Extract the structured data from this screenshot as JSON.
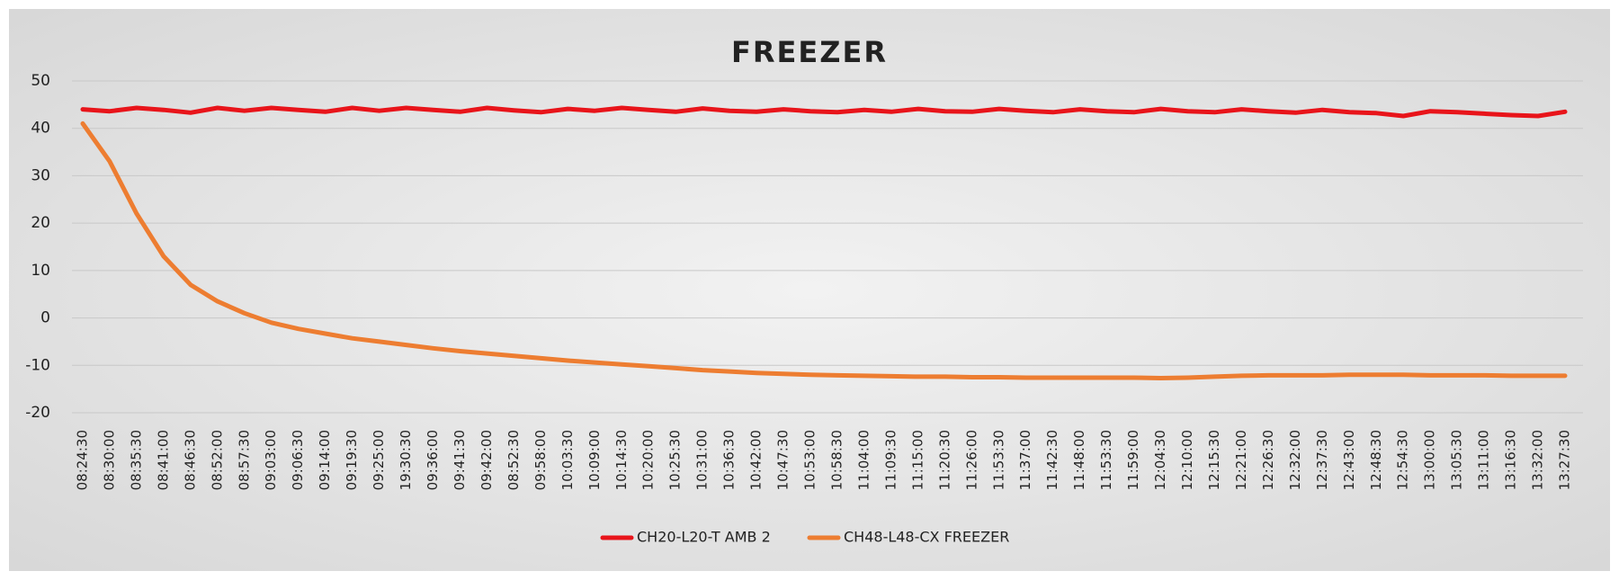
{
  "chart_data": {
    "type": "line",
    "title": "FREEZER",
    "categories": [
      "08:24:30",
      "08:30:00",
      "08:35:30",
      "08:41:00",
      "08:46:30",
      "08:52:00",
      "08:57:30",
      "09:03:00",
      "09:06:30",
      "09:14:00",
      "09:19:30",
      "09:25:00",
      "19:30:30",
      "09:36:00",
      "09:41:30",
      "09:42:00",
      "08:52:30",
      "09:58:00",
      "10:03:30",
      "10:09:00",
      "10:14:30",
      "10:20:00",
      "10:25:30",
      "10:31:00",
      "10:36:30",
      "10:42:00",
      "10:47:30",
      "10:53:00",
      "10:58:30",
      "11:04:00",
      "11:09:30",
      "11:15:00",
      "11:20:30",
      "11:26:00",
      "11:53:30",
      "11:37:00",
      "11:42:30",
      "11:48:00",
      "11:53:30",
      "11:59:00",
      "12:04:30",
      "12:10:00",
      "12:15:30",
      "12:21:00",
      "12:26:30",
      "12:32:00",
      "12:37:30",
      "12:43:00",
      "12:48:30",
      "12:54:30",
      "13:00:00",
      "13:05:30",
      "13:11:00",
      "13:16:30",
      "13:32:00",
      "13:27:30"
    ],
    "series": [
      {
        "name": "CH20-L20-T AMB 2",
        "color": "#e8141a",
        "values": [
          44,
          43.6,
          44.3,
          43.9,
          43.3,
          44.3,
          43.7,
          44.3,
          43.9,
          43.5,
          44.3,
          43.7,
          44.3,
          43.9,
          43.5,
          44.3,
          43.8,
          43.4,
          44.1,
          43.7,
          44.3,
          43.9,
          43.5,
          44.2,
          43.7,
          43.5,
          44,
          43.6,
          43.4,
          43.9,
          43.5,
          44.1,
          43.6,
          43.5,
          44.1,
          43.7,
          43.4,
          44,
          43.6,
          43.4,
          44.1,
          43.6,
          43.4,
          44,
          43.6,
          43.3,
          43.9,
          43.4,
          43.2,
          42.6,
          43.6,
          43.4,
          43.1,
          42.8,
          42.6,
          43.5
        ]
      },
      {
        "name": "CH48-L48-CX FREEZER",
        "color": "#ed7d31",
        "values": [
          41,
          33,
          22,
          13,
          7,
          3.5,
          1,
          -1,
          -2.3,
          -3.3,
          -4.3,
          -5,
          -5.7,
          -6.4,
          -7,
          -7.5,
          -8,
          -8.5,
          -9,
          -9.4,
          -9.8,
          -10.2,
          -10.6,
          -11,
          -11.3,
          -11.6,
          -11.8,
          -12,
          -12.1,
          -12.2,
          -12.3,
          -12.4,
          -12.4,
          -12.5,
          -12.5,
          -12.6,
          -12.6,
          -12.6,
          -12.6,
          -12.6,
          -12.7,
          -12.6,
          -12.4,
          -12.2,
          -12.1,
          -12.1,
          -12.1,
          -12,
          -12,
          -12,
          -12.1,
          -12.1,
          -12.1,
          -12.2,
          -12.2,
          -12.2
        ]
      }
    ],
    "ylim": [
      -20,
      50
    ],
    "yticks": [
      -20,
      -10,
      0,
      10,
      20,
      30,
      40,
      50
    ],
    "grid": true,
    "legend": "bottom"
  }
}
